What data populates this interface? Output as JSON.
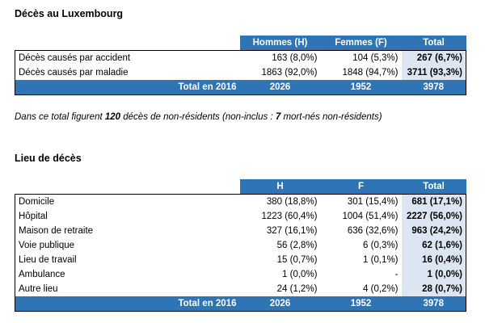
{
  "section1": {
    "title": "Décès au Luxembourg",
    "headers": [
      "",
      "Hommes (H)",
      "Femmes (F)",
      "Total"
    ],
    "rows": [
      {
        "label": "Décès causés par accident",
        "h": "163 (8,0%)",
        "f": "104 (5,3%)",
        "total": "267 (6,7%)"
      },
      {
        "label": "Décès causés par maladie",
        "h": "1863 (92,0%)",
        "f": "1848 (94,7%)",
        "total": "3711 (93,3%)"
      }
    ],
    "total_row": {
      "label": "Total en 2016",
      "h": "2026",
      "f": "1952",
      "total": "3978"
    }
  },
  "note": {
    "part1": "Dans ce total figurent ",
    "bold1": "120",
    "part2": " décès de non-résidents (non-inclus : ",
    "bold2": "7",
    "part3": " mort-nés non-résidents)"
  },
  "section2": {
    "title": "Lieu de décès",
    "headers": [
      "",
      "H",
      "F",
      "Total"
    ],
    "rows": [
      {
        "label": "Domicile",
        "h": "380 (18,8%)",
        "f": "301 (15,4%)",
        "total": "681 (17,1%)"
      },
      {
        "label": "Hôpital",
        "h": "1223 (60,4%)",
        "f": "1004 (51,4%)",
        "total": "2227 (56,0%)"
      },
      {
        "label": "Maison de retraite",
        "h": "327 (16,1%)",
        "f": "636 (32,6%)",
        "total": "963 (24,2%)"
      },
      {
        "label": "Voie publique",
        "h": "56 (2,8%)",
        "f": "6 (0,3%)",
        "total": "62 (1,6%)"
      },
      {
        "label": "Lieu de travail",
        "h": "15 (0,7%)",
        "f": "1 (0,1%)",
        "total": "16 (0,4%)"
      },
      {
        "label": "Ambulance",
        "h": "1 (0,0%)",
        "f": "-",
        "total": "1 (0,0%)"
      },
      {
        "label": "Autre lieu",
        "h": "24 (1,2%)",
        "f": "4 (0,2%)",
        "total": "28 (0,7%)"
      }
    ],
    "total_row": {
      "label": "Total en 2016",
      "h": "2026",
      "f": "1952",
      "total": "3978"
    }
  }
}
